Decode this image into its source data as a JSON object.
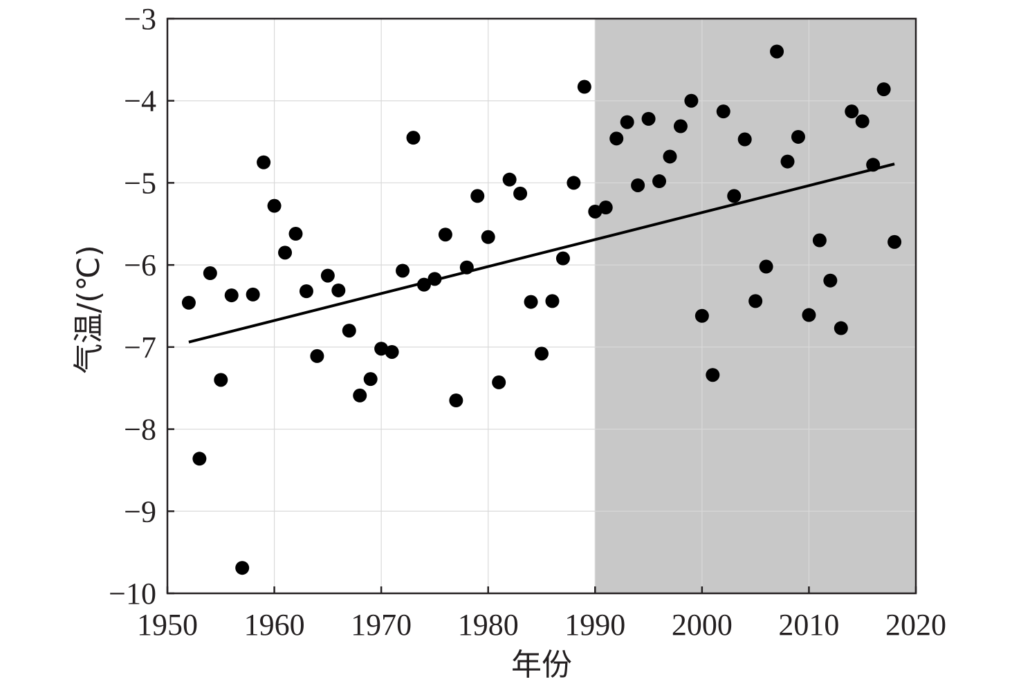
{
  "chart_data": {
    "type": "scatter",
    "title": "",
    "xlabel": "年份",
    "ylabel": "气温/(℃)",
    "xlim": [
      1950,
      2020
    ],
    "ylim": [
      -10,
      -3
    ],
    "x_ticks": [
      "1950",
      "1960",
      "1970",
      "1980",
      "1990",
      "2000",
      "2010",
      "2020"
    ],
    "y_ticks": [
      "−10",
      "−9",
      "−8",
      "−7",
      "−6",
      "−5",
      "−4",
      "−3"
    ],
    "grid": true,
    "shaded_region": {
      "x_from": 1990,
      "x_to": 2020,
      "color": "#c8c8c8"
    },
    "point_color": "#000000",
    "series": [
      {
        "x": [
          1952,
          1953,
          1954,
          1955,
          1956,
          1957,
          1958,
          1959,
          1960,
          1961,
          1962,
          1963,
          1964,
          1965,
          1966,
          1967,
          1968,
          1969,
          1970,
          1971,
          1972,
          1973,
          1974,
          1975,
          1976,
          1977,
          1978,
          1979,
          1980,
          1981,
          1982,
          1983,
          1984,
          1985,
          1986,
          1987,
          1988,
          1989,
          1990,
          1991,
          1992,
          1993,
          1994,
          1995,
          1996,
          1997,
          1998,
          1999,
          2000,
          2001,
          2002,
          2003,
          2004,
          2005,
          2006,
          2007,
          2008,
          2009,
          2010,
          2011,
          2012,
          2013,
          2014,
          2015,
          2016,
          2017,
          2018
        ],
        "y": [
          -6.46,
          -8.36,
          -6.1,
          -7.4,
          -6.37,
          -9.69,
          -6.36,
          -4.75,
          -5.28,
          -5.85,
          -5.62,
          -6.32,
          -7.11,
          -6.13,
          -6.31,
          -6.8,
          -7.59,
          -7.39,
          -7.02,
          -7.06,
          -6.07,
          -4.45,
          -6.24,
          -6.17,
          -5.63,
          -7.65,
          -6.03,
          -5.16,
          -5.66,
          -7.43,
          -4.96,
          -5.13,
          -6.45,
          -7.08,
          -6.44,
          -5.92,
          -5.0,
          -3.83,
          -5.35,
          -5.3,
          -4.46,
          -4.26,
          -5.03,
          -4.22,
          -4.98,
          -4.68,
          -4.31,
          -4.0,
          -6.62,
          -7.34,
          -4.13,
          -5.16,
          -4.47,
          -6.44,
          -6.02,
          -3.4,
          -4.74,
          -4.44,
          -6.61,
          -5.7,
          -6.19,
          -6.77,
          -4.13,
          -4.25,
          -4.78,
          -3.86,
          -5.72
        ]
      }
    ],
    "trend_line": {
      "x": [
        1952,
        2018
      ],
      "y": [
        -6.94,
        -4.77
      ]
    }
  }
}
